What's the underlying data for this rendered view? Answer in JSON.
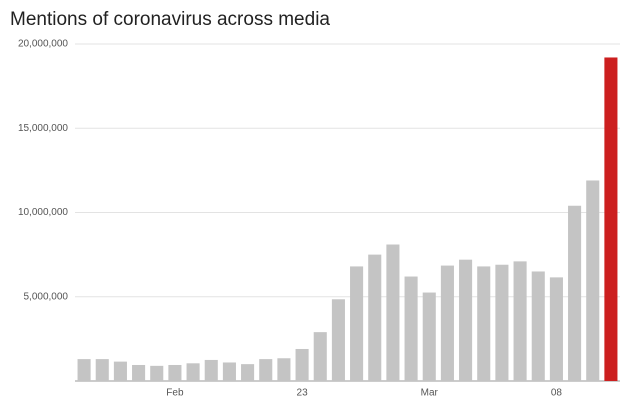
{
  "chart_data": {
    "type": "bar",
    "title": "Mentions of coronavirus across media",
    "categories": [
      null,
      null,
      null,
      null,
      null,
      "Feb",
      null,
      null,
      null,
      null,
      null,
      null,
      "23",
      null,
      null,
      null,
      null,
      null,
      null,
      "Mar",
      null,
      null,
      null,
      null,
      null,
      null,
      "08",
      null,
      null,
      null
    ],
    "values": [
      1300000,
      1300000,
      1150000,
      950000,
      900000,
      950000,
      1050000,
      1250000,
      1100000,
      1000000,
      1300000,
      1350000,
      1900000,
      2900000,
      4850000,
      6800000,
      7500000,
      8100000,
      6200000,
      5250000,
      6850000,
      7200000,
      6800000,
      6900000,
      7100000,
      6500000,
      6150000,
      10400000,
      11900000,
      19200000
    ],
    "colors": [
      "#c4c4c4",
      "#c4c4c4",
      "#c4c4c4",
      "#c4c4c4",
      "#c4c4c4",
      "#c4c4c4",
      "#c4c4c4",
      "#c4c4c4",
      "#c4c4c4",
      "#c4c4c4",
      "#c4c4c4",
      "#c4c4c4",
      "#c4c4c4",
      "#c4c4c4",
      "#c4c4c4",
      "#c4c4c4",
      "#c4c4c4",
      "#c4c4c4",
      "#c4c4c4",
      "#c4c4c4",
      "#c4c4c4",
      "#c4c4c4",
      "#c4c4c4",
      "#c4c4c4",
      "#c4c4c4",
      "#c4c4c4",
      "#c4c4c4",
      "#c4c4c4",
      "#c4c4c4",
      "#cc1f1f"
    ],
    "ylim": [
      0,
      20000000
    ],
    "yticks": [
      {
        "value": 5000000,
        "label": "5,000,000"
      },
      {
        "value": 10000000,
        "label": "10,000,000"
      },
      {
        "value": 15000000,
        "label": "15,000,000"
      },
      {
        "value": 20000000,
        "label": "20,000,000"
      }
    ],
    "grid": true
  }
}
